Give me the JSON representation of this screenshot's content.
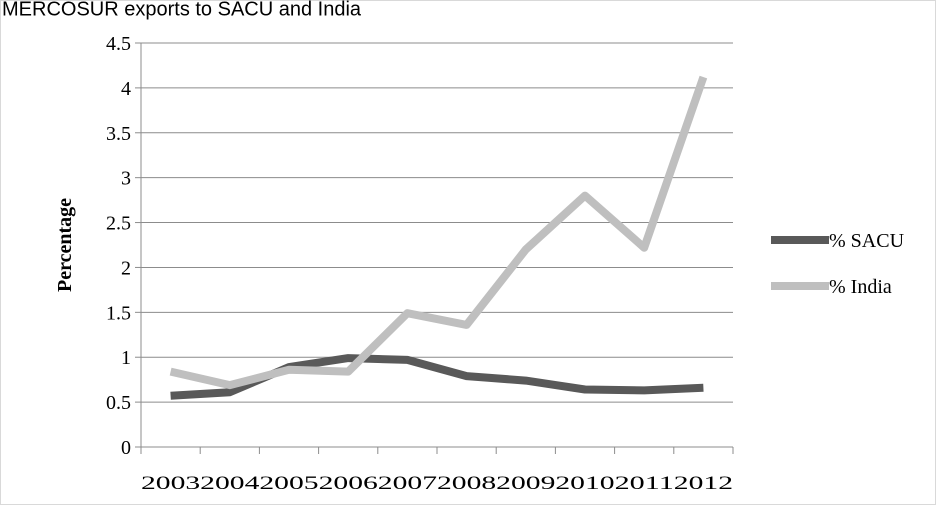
{
  "chart_data": {
    "type": "line",
    "title": "MERCOSUR exports to SACU and India",
    "xlabel": "",
    "ylabel": "Percentage",
    "categories": [
      "2003",
      "2004",
      "2005",
      "2006",
      "2007",
      "2008",
      "2009",
      "2010",
      "2011",
      "2012"
    ],
    "ylim": [
      0,
      4.5
    ],
    "yticks": [
      "0",
      "0.5",
      "1",
      "1.5",
      "2",
      "2.5",
      "3",
      "3.5",
      "4",
      "4.5"
    ],
    "grid": true,
    "legend_position": "right",
    "series": [
      {
        "name": "% SACU",
        "color": "#595959",
        "values": [
          0.57,
          0.61,
          0.89,
          0.99,
          0.97,
          0.79,
          0.74,
          0.64,
          0.63,
          0.66
        ]
      },
      {
        "name": "% India",
        "color": "#bfbfbf",
        "values": [
          0.84,
          0.69,
          0.86,
          0.84,
          1.49,
          1.36,
          2.2,
          2.8,
          2.22,
          4.12
        ]
      }
    ]
  }
}
